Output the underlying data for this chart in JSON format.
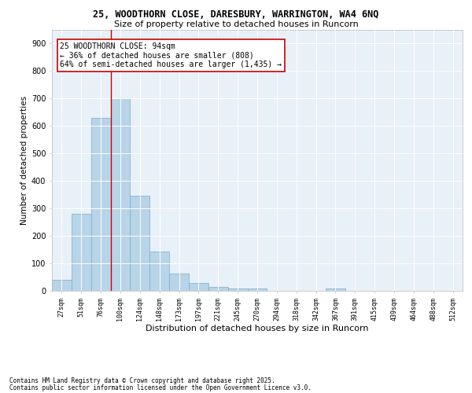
{
  "title_line1": "25, WOODTHORN CLOSE, DARESBURY, WARRINGTON, WA4 6NQ",
  "title_line2": "Size of property relative to detached houses in Runcorn",
  "xlabel": "Distribution of detached houses by size in Runcorn",
  "ylabel": "Number of detached properties",
  "bar_color": "#b8d4e8",
  "bar_edge_color": "#7aaec8",
  "background_color": "#e8f0f8",
  "grid_color": "#ffffff",
  "vline_color": "#cc0000",
  "vline_x_index": 3,
  "annotation_text": "25 WOODTHORN CLOSE: 94sqm\n← 36% of detached houses are smaller (808)\n64% of semi-detached houses are larger (1,435) →",
  "annotation_box_color": "#ffffff",
  "annotation_box_edge": "#cc0000",
  "categories": [
    "27sqm",
    "51sqm",
    "76sqm",
    "100sqm",
    "124sqm",
    "148sqm",
    "173sqm",
    "197sqm",
    "221sqm",
    "245sqm",
    "270sqm",
    "294sqm",
    "318sqm",
    "342sqm",
    "367sqm",
    "391sqm",
    "415sqm",
    "439sqm",
    "464sqm",
    "488sqm",
    "512sqm"
  ],
  "values": [
    40,
    280,
    630,
    700,
    345,
    143,
    63,
    30,
    13,
    10,
    10,
    0,
    0,
    0,
    10,
    0,
    0,
    0,
    0,
    0,
    0
  ],
  "ylim": [
    0,
    950
  ],
  "yticks": [
    0,
    100,
    200,
    300,
    400,
    500,
    600,
    700,
    800,
    900
  ],
  "footnote1": "Contains HM Land Registry data © Crown copyright and database right 2025.",
  "footnote2": "Contains public sector information licensed under the Open Government Licence v3.0."
}
